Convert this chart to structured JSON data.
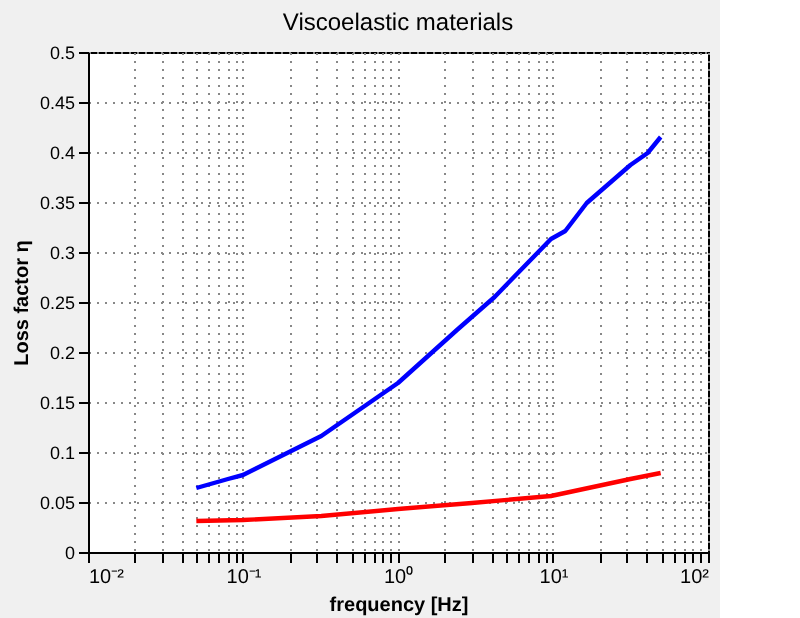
{
  "chart_data": {
    "type": "line",
    "title": "Viscoelastic materials",
    "xlabel": "frequency [Hz]",
    "ylabel": "Loss factor η",
    "log": "x",
    "grid": true,
    "line_style": "solid",
    "marker": "none",
    "legend": false,
    "xlim": [
      0.01,
      100
    ],
    "ylim": [
      0,
      0.5
    ],
    "xticks": [
      {
        "value": 0.01,
        "label": "10⁻²"
      },
      {
        "value": 0.02,
        "label": null
      },
      {
        "value": 0.03,
        "label": null
      },
      {
        "value": 0.04,
        "label": null
      },
      {
        "value": 0.05,
        "label": null
      },
      {
        "value": 0.06,
        "label": null
      },
      {
        "value": 0.07,
        "label": null
      },
      {
        "value": 0.08,
        "label": null
      },
      {
        "value": 0.09,
        "label": null
      },
      {
        "value": 0.1,
        "label": "10⁻¹"
      },
      {
        "value": 0.2,
        "label": null
      },
      {
        "value": 0.3,
        "label": null
      },
      {
        "value": 0.4,
        "label": null
      },
      {
        "value": 0.5,
        "label": null
      },
      {
        "value": 0.6,
        "label": null
      },
      {
        "value": 0.7,
        "label": null
      },
      {
        "value": 0.8,
        "label": null
      },
      {
        "value": 0.9,
        "label": null
      },
      {
        "value": 1,
        "label": "10⁰"
      },
      {
        "value": 2,
        "label": null
      },
      {
        "value": 3,
        "label": null
      },
      {
        "value": 4,
        "label": null
      },
      {
        "value": 5,
        "label": null
      },
      {
        "value": 6,
        "label": null
      },
      {
        "value": 7,
        "label": null
      },
      {
        "value": 8,
        "label": null
      },
      {
        "value": 9,
        "label": null
      },
      {
        "value": 10,
        "label": "10¹"
      },
      {
        "value": 20,
        "label": null
      },
      {
        "value": 30,
        "label": null
      },
      {
        "value": 40,
        "label": null
      },
      {
        "value": 50,
        "label": null
      },
      {
        "value": 60,
        "label": null
      },
      {
        "value": 70,
        "label": null
      },
      {
        "value": 80,
        "label": null
      },
      {
        "value": 90,
        "label": null
      },
      {
        "value": 100,
        "label": "10²"
      }
    ],
    "yticks": [
      0,
      0.05,
      0.1,
      0.15,
      0.2,
      0.25,
      0.3,
      0.35,
      0.4,
      0.45,
      0.5
    ],
    "series": [
      {
        "color": "#0000ff",
        "x": [
          0.05,
          0.08,
          0.1,
          0.32,
          1,
          2.4,
          4.2,
          9.7,
          12,
          16.5,
          31.6,
          40.8,
          49.5
        ],
        "values": [
          0.064,
          0.073,
          0.077,
          0.116,
          0.169,
          0.222,
          0.255,
          0.313,
          0.321,
          0.349,
          0.387,
          0.399,
          0.415
        ]
      },
      {
        "color": "#ff0000",
        "x": [
          0.05,
          0.1,
          0.32,
          1,
          3,
          9.7,
          31.6,
          49.5
        ],
        "values": [
          0.031,
          0.032,
          0.036,
          0.043,
          0.049,
          0.056,
          0.073,
          0.079
        ]
      }
    ]
  }
}
